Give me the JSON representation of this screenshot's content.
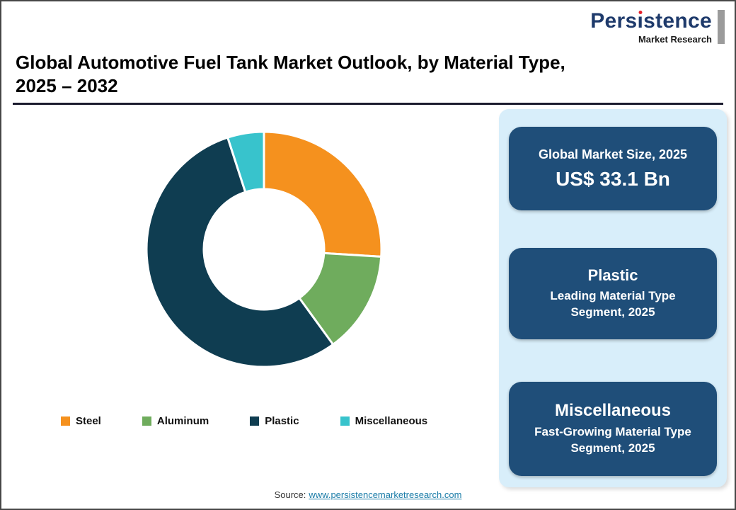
{
  "logo": {
    "name": "Persistence",
    "subtitle": "Market Research",
    "brand_color": "#1E3A6B",
    "dot_color": "#E62129"
  },
  "header": {
    "title_line1": "Global Automotive Fuel Tank Market Outlook, by Material Type,",
    "title_line2": "2025 – 2032"
  },
  "chart_data": {
    "type": "pie",
    "subtype": "donut",
    "title": "Global Automotive Fuel Tank Market Outlook, by Material Type, 2025 – 2032",
    "categories": [
      "Steel",
      "Aluminum",
      "Plastic",
      "Miscellaneous"
    ],
    "values": [
      26,
      14,
      55,
      5
    ],
    "unit": "%",
    "values_estimated_from_arc_angles": true,
    "colors": [
      "#F5911E",
      "#6FAC5D",
      "#0F3D51",
      "#38C3CC"
    ],
    "start_angle_deg": 0,
    "direction": "clockwise",
    "inner_radius_ratio": 0.51,
    "legend_position": "bottom"
  },
  "sidebar": {
    "market_size_card": {
      "label": "Global Market Size, 2025",
      "value": "US$ 33.1 Bn"
    },
    "leading_card": {
      "title": "Plastic",
      "description": "Leading Material Type Segment, 2025"
    },
    "fast_growing_card": {
      "title": "Miscellaneous",
      "description": "Fast-Growing Material Type Segment, 2025"
    },
    "panel_color": "#D8EEFA",
    "card_color": "#1F4E79"
  },
  "source": {
    "label": "Source:",
    "link_text": "www.persistencemarketresearch.com"
  }
}
